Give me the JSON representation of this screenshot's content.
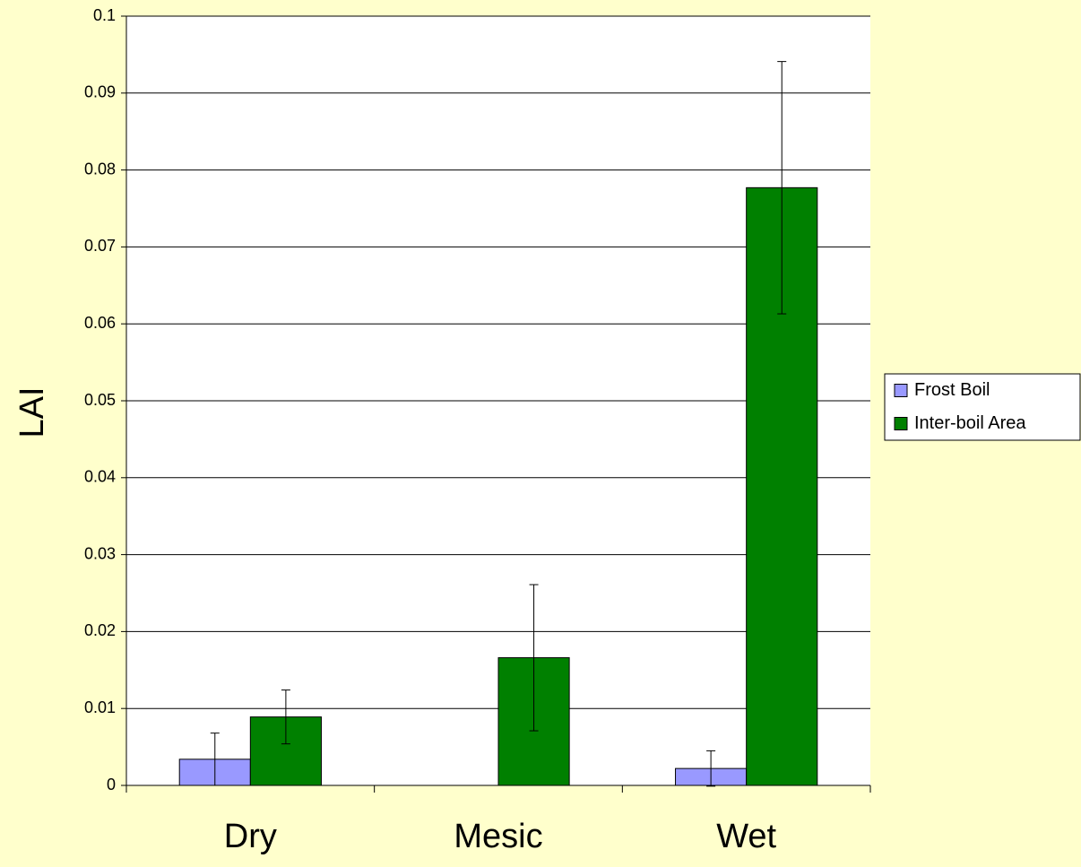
{
  "chart_data": {
    "type": "bar",
    "ylabel": "LAI",
    "categories": [
      "Dry",
      "Mesic",
      "Wet"
    ],
    "series": [
      {
        "name": "Frost Boil",
        "color": "#9999ff",
        "values": [
          0.0034,
          0,
          0.0022
        ],
        "errors": [
          0.0034,
          0,
          0.0023
        ]
      },
      {
        "name": "Inter-boil Area",
        "color": "#008000",
        "values": [
          0.0089,
          0.0166,
          0.0777
        ],
        "errors": [
          0.0035,
          0.0095,
          0.0164
        ]
      }
    ],
    "ylim": [
      0,
      0.1
    ],
    "yticks": [
      0,
      0.01,
      0.02,
      0.03,
      0.04,
      0.05,
      0.06,
      0.07,
      0.08,
      0.09,
      0.1
    ],
    "grid": true,
    "legend": "right"
  }
}
